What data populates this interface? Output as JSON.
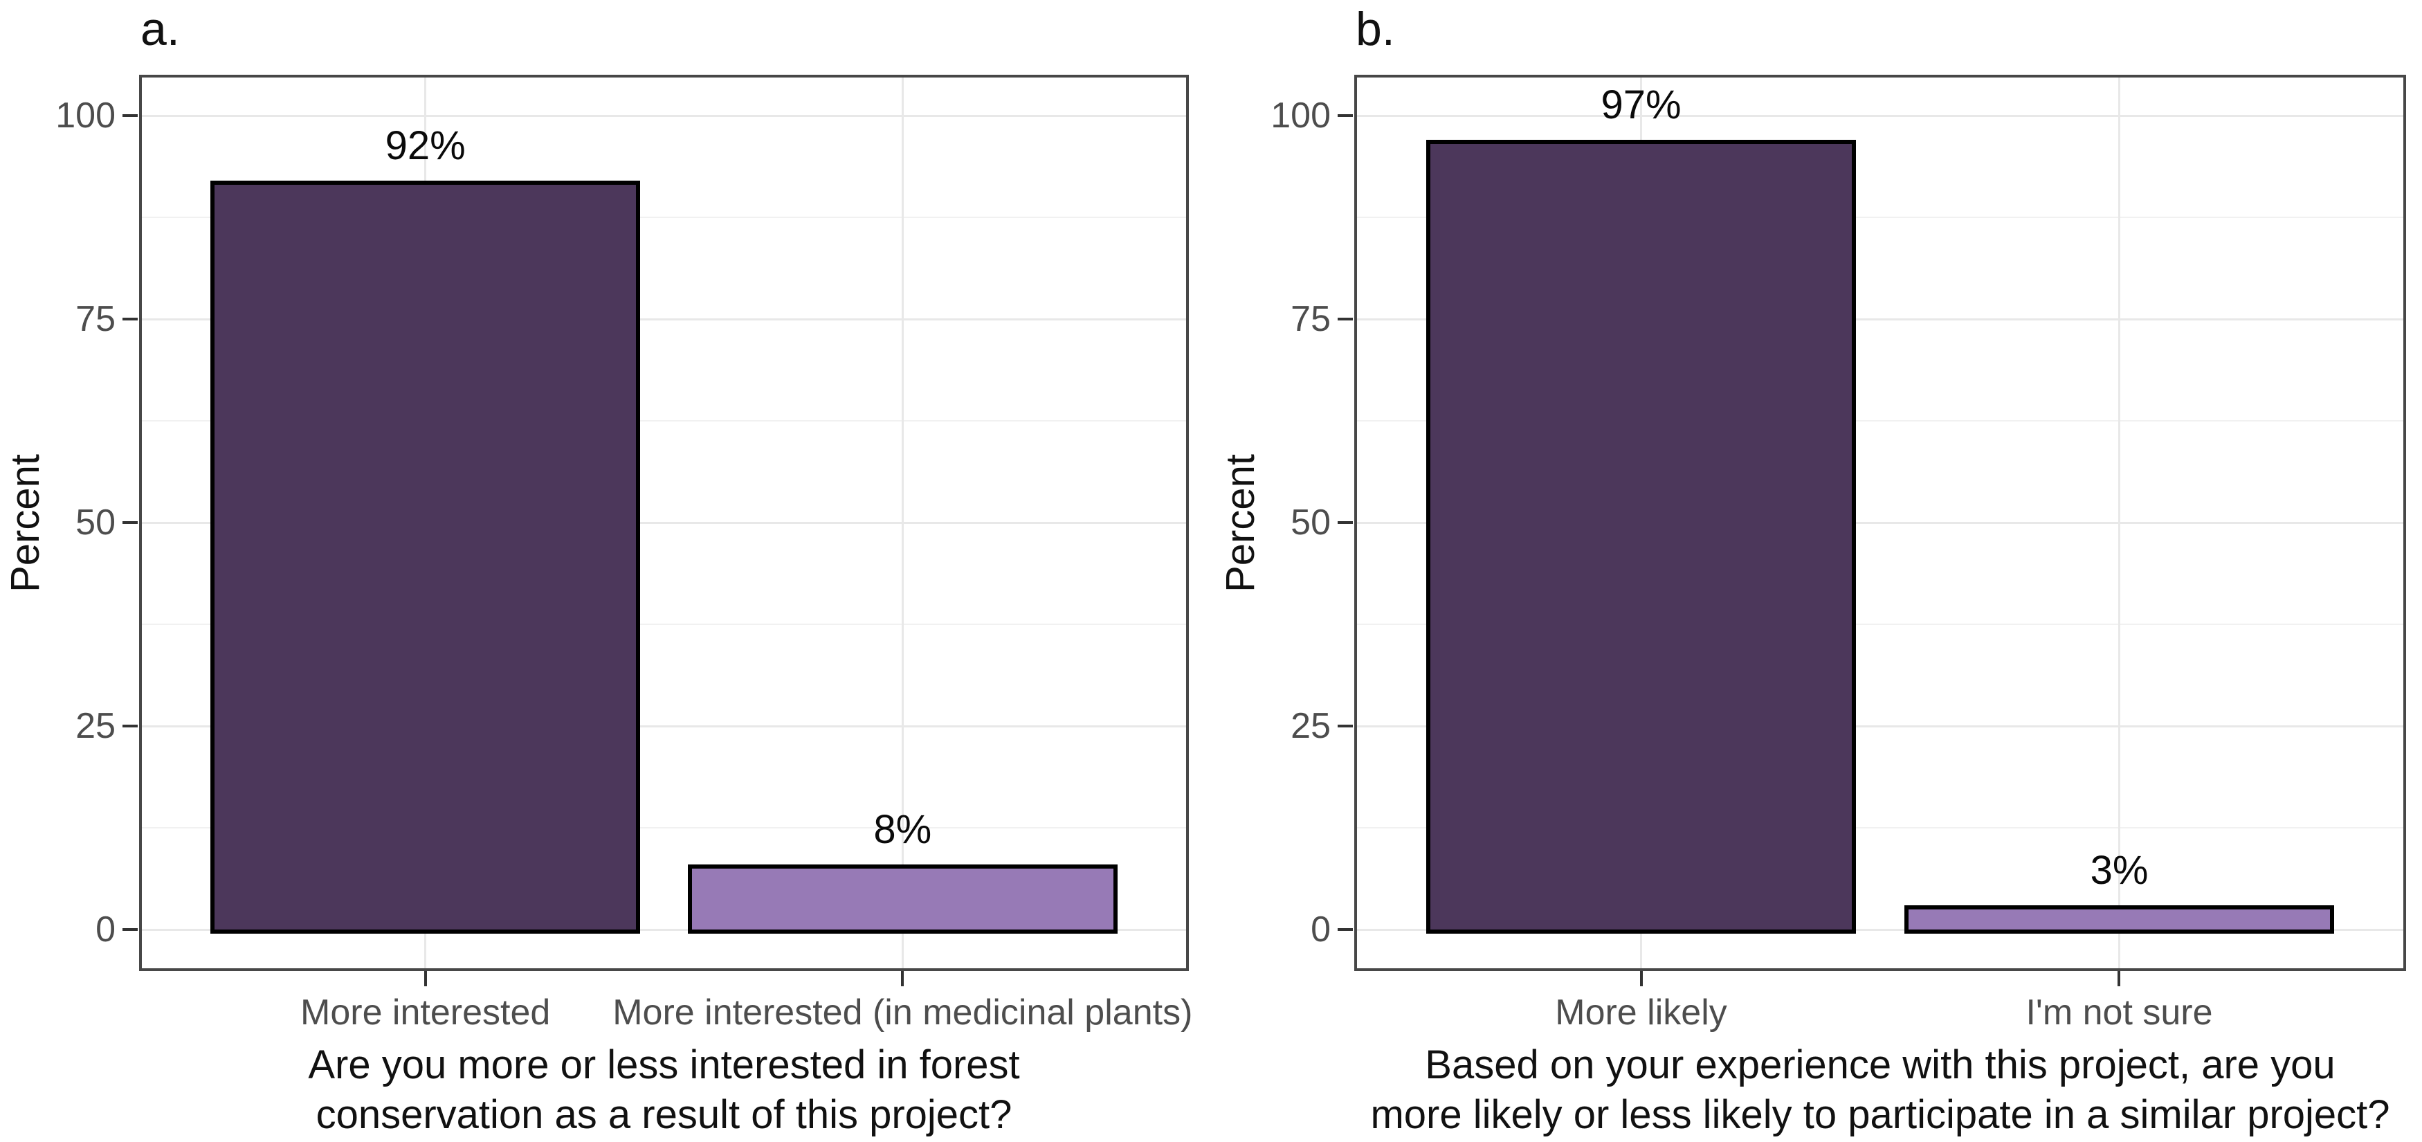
{
  "figure": {
    "background_color": "#ffffff",
    "panel_border_color": "#474747",
    "grid_major_color": "#e8e8e8",
    "grid_minor_color": "#f1f1f1",
    "tick_mark_color": "#333333",
    "axis_text_color": "#4d4d4d",
    "title_text_color": "#111111",
    "bar_stroke_color": "#000000"
  },
  "chart_data": [
    {
      "type": "bar",
      "panel_label": "a.",
      "title": "",
      "ylabel": "Percent",
      "xlabel_lines": [
        "Are you more or less interested in forest",
        "conservation as a result of this project?"
      ],
      "categories": [
        "More interested",
        "More interested (in medicinal plants)"
      ],
      "values": [
        92,
        8
      ],
      "value_labels": [
        "92%",
        "8%"
      ],
      "bar_fill_colors": [
        "#4C375B",
        "#977AB6"
      ],
      "ylim": [
        0,
        100
      ],
      "ytick_labels": [
        "0",
        "25",
        "50",
        "75",
        "100"
      ],
      "ytick_values": [
        0,
        25,
        50,
        75,
        100
      ],
      "yminor_values": [
        12.5,
        37.5,
        62.5,
        87.5
      ],
      "grid": "horizontal major+minor, vertical major at categories",
      "legend": "none"
    },
    {
      "type": "bar",
      "panel_label": "b.",
      "title": "",
      "ylabel": "Percent",
      "xlabel_lines": [
        "Based on your experience with this project, are you",
        "more likely or less likely to participate in a similar project?"
      ],
      "categories": [
        "More likely",
        "I'm not sure"
      ],
      "values": [
        97,
        3
      ],
      "value_labels": [
        "97%",
        "3%"
      ],
      "bar_fill_colors": [
        "#4C375B",
        "#977AB6"
      ],
      "ylim": [
        0,
        100
      ],
      "ytick_labels": [
        "0",
        "25",
        "50",
        "75",
        "100"
      ],
      "ytick_values": [
        0,
        25,
        50,
        75,
        100
      ],
      "yminor_values": [
        12.5,
        37.5,
        62.5,
        87.5
      ],
      "grid": "horizontal major+minor, vertical major at categories",
      "legend": "none"
    }
  ]
}
